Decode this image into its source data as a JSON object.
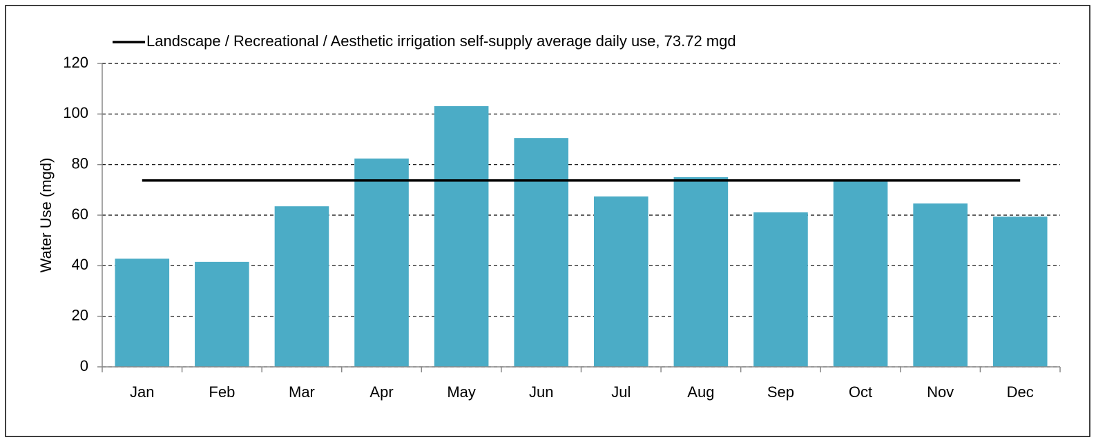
{
  "chart_data": {
    "type": "bar",
    "y_label": "Water Use (mgd)",
    "categories": [
      "Jan",
      "Feb",
      "Mar",
      "Apr",
      "May",
      "Jun",
      "Jul",
      "Aug",
      "Sep",
      "Oct",
      "Nov",
      "Dec"
    ],
    "values": [
      42.8,
      41.5,
      63.5,
      82.4,
      103.1,
      90.5,
      67.4,
      75,
      61.1,
      73.6,
      64.6,
      59.4
    ],
    "color": "#4bacc6",
    "reference_line": {
      "name": "Landscape / Recreational  / Aesthetic irrigation self-supply average daily use, 73.72 mgd",
      "value": 73.72,
      "color": "#000000"
    },
    "ylim": [
      0,
      120
    ],
    "yticks": [
      0,
      20,
      40,
      60,
      80,
      100,
      120
    ],
    "grid": true
  }
}
